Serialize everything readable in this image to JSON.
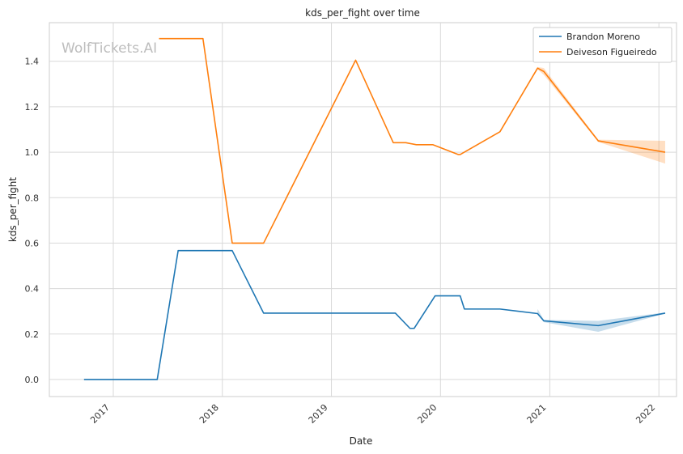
{
  "chart_data": {
    "type": "line",
    "title": "kds_per_fight over time",
    "xlabel": "Date",
    "ylabel": "kds_per_fight",
    "watermark": "WolfTickets.AI",
    "xlim": [
      "2016-06-01",
      "2022-03-01"
    ],
    "ylim": [
      -0.075,
      1.57
    ],
    "x_ticks": [
      "2017-01-01",
      "2018-01-01",
      "2019-01-01",
      "2020-01-01",
      "2021-01-01",
      "2022-01-01"
    ],
    "x_tick_labels": [
      "2017",
      "2018",
      "2019",
      "2020",
      "2021",
      "2022"
    ],
    "y_ticks": [
      0.0,
      0.2,
      0.4,
      0.6,
      0.8,
      1.0,
      1.2,
      1.4
    ],
    "y_tick_labels": [
      "0.0",
      "0.2",
      "0.4",
      "0.6",
      "0.8",
      "1.0",
      "1.2",
      "1.4"
    ],
    "grid": true,
    "legend_position": "top-right",
    "series": [
      {
        "name": "Brandon Moreno",
        "color": "#1f77b4",
        "x": [
          "2016-09-25",
          "2017-05-28",
          "2017-08-06",
          "2018-02-03",
          "2018-05-19",
          "2019-08-03",
          "2019-09-21",
          "2019-10-05",
          "2019-12-14",
          "2020-03-07",
          "2020-03-21",
          "2020-07-18",
          "2020-11-21",
          "2020-12-12",
          "2021-06-12",
          "2022-01-22"
        ],
        "y": [
          0.0,
          0.0,
          0.567,
          0.567,
          0.292,
          0.292,
          0.225,
          0.225,
          0.368,
          0.368,
          0.31,
          0.31,
          0.29,
          0.258,
          0.237,
          0.292
        ],
        "band": {
          "x": [
            "2020-11-21",
            "2020-12-12",
            "2021-06-12",
            "2022-01-22"
          ],
          "lower": [
            0.285,
            0.252,
            0.21,
            0.29
          ],
          "upper": [
            0.31,
            0.262,
            0.258,
            0.295
          ]
        }
      },
      {
        "name": "Deiveson Figueiredo",
        "color": "#ff7f0e",
        "x": [
          "2017-06-03",
          "2017-10-28",
          "2018-02-03",
          "2018-05-19",
          "2019-03-23",
          "2019-07-27",
          "2019-09-07",
          "2019-10-12",
          "2019-12-07",
          "2020-02-29",
          "2020-03-07",
          "2020-07-18",
          "2020-11-21",
          "2020-12-12",
          "2021-06-12",
          "2022-01-22"
        ],
        "y": [
          1.5,
          1.5,
          0.6,
          0.6,
          1.405,
          1.042,
          1.042,
          1.033,
          1.033,
          0.99,
          0.99,
          1.09,
          1.37,
          1.355,
          1.05,
          1.0
        ],
        "band": {
          "x": [
            "2020-11-21",
            "2020-12-12",
            "2021-06-12",
            "2022-01-22"
          ],
          "lower": [
            1.365,
            1.34,
            1.045,
            0.95
          ],
          "upper": [
            1.375,
            1.37,
            1.055,
            1.05
          ]
        }
      }
    ]
  }
}
